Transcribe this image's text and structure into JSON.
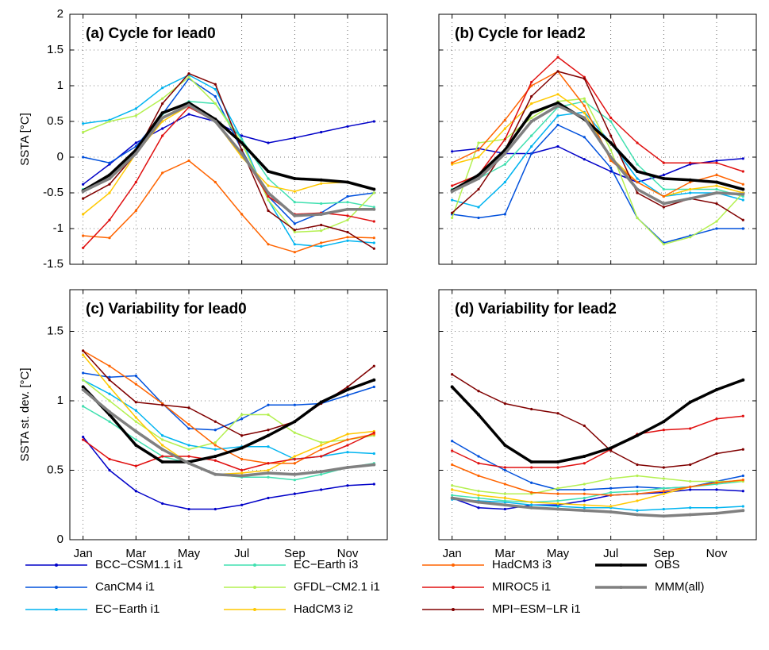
{
  "chart_data": [
    {
      "type": "line",
      "title": "(a) Cycle for lead0",
      "ylabel": "SSTA [°C]",
      "ylim": [
        -1.5,
        2
      ],
      "yticks": [
        -1.5,
        -1,
        -0.5,
        0,
        0.5,
        1,
        1.5,
        2
      ],
      "grid": true,
      "series": [
        {
          "name": "BCC−CSM1.1 i1",
          "color": "#0000c8",
          "values": [
            -0.38,
            -0.1,
            0.2,
            0.4,
            0.6,
            0.5,
            0.3,
            0.2,
            0.27,
            0.35,
            0.43,
            0.5
          ]
        },
        {
          "name": "CanCM4 i1",
          "color": "#0050dc",
          "values": [
            0.0,
            -0.08,
            0.15,
            0.6,
            1.1,
            0.85,
            0.1,
            -0.55,
            -0.93,
            -0.78,
            -0.55,
            -0.5
          ]
        },
        {
          "name": "EC−Earth i1",
          "color": "#00b4f0",
          "values": [
            0.47,
            0.52,
            0.68,
            0.97,
            1.15,
            0.95,
            0.25,
            -0.6,
            -1.22,
            -1.25,
            -1.17,
            -1.2
          ]
        },
        {
          "name": "EC−Earth i3",
          "color": "#40e0b0",
          "values": [
            -0.45,
            -0.3,
            0.1,
            0.6,
            0.78,
            0.75,
            0.25,
            -0.3,
            -0.63,
            -0.65,
            -0.63,
            -0.7
          ]
        },
        {
          "name": "GFDL−CM2.1 i1",
          "color": "#b4f050",
          "values": [
            0.35,
            0.5,
            0.58,
            0.82,
            1.12,
            0.75,
            0.2,
            -0.6,
            -1.05,
            -1.03,
            -0.88,
            -0.5
          ]
        },
        {
          "name": "HadCM3 i2",
          "color": "#ffc800",
          "values": [
            -0.8,
            -0.5,
            0.05,
            0.5,
            0.72,
            0.5,
            0.0,
            -0.4,
            -0.48,
            -0.37,
            -0.35,
            -0.45
          ]
        },
        {
          "name": "HadCM3 i3",
          "color": "#ff6400",
          "values": [
            -1.1,
            -1.13,
            -0.75,
            -0.22,
            -0.05,
            -0.35,
            -0.8,
            -1.22,
            -1.33,
            -1.2,
            -1.12,
            -1.13
          ]
        },
        {
          "name": "MIROC5 i1",
          "color": "#e01010",
          "values": [
            -1.27,
            -0.88,
            -0.35,
            0.3,
            0.7,
            0.5,
            0.05,
            -0.55,
            -0.8,
            -0.78,
            -0.82,
            -0.9
          ]
        },
        {
          "name": "MPI−ESM−LR i1",
          "color": "#800000",
          "values": [
            -0.58,
            -0.38,
            0.05,
            0.75,
            1.17,
            1.02,
            0.1,
            -0.75,
            -1.02,
            -0.95,
            -1.05,
            -1.28
          ]
        },
        {
          "name": "OBS",
          "color": "#000000",
          "linewidth": 3.5,
          "values": [
            -0.47,
            -0.25,
            0.1,
            0.62,
            0.76,
            0.53,
            0.2,
            -0.2,
            -0.3,
            -0.32,
            -0.35,
            -0.45
          ]
        },
        {
          "name": "MMM(all)",
          "color": "#808080",
          "linewidth": 3.5,
          "values": [
            -0.48,
            -0.3,
            0.05,
            0.55,
            0.73,
            0.5,
            0.05,
            -0.5,
            -0.82,
            -0.8,
            -0.73,
            -0.73
          ]
        }
      ]
    },
    {
      "type": "line",
      "title": "(b) Cycle for lead2",
      "ylim": [
        -1.5,
        2
      ],
      "yticks": [
        -1.5,
        -1,
        -0.5,
        0,
        0.5,
        1,
        1.5,
        2
      ],
      "ytick_labels": false,
      "grid": true,
      "series": [
        {
          "name": "BCC−CSM1.1 i1",
          "color": "#0000c8",
          "values": [
            0.08,
            0.12,
            0.05,
            0.05,
            0.15,
            -0.03,
            -0.2,
            -0.35,
            -0.25,
            -0.1,
            -0.05,
            -0.02
          ]
        },
        {
          "name": "CanCM4 i1",
          "color": "#0050dc",
          "values": [
            -0.8,
            -0.85,
            -0.8,
            0.05,
            0.45,
            0.28,
            -0.15,
            -0.85,
            -1.2,
            -1.1,
            -1.0,
            -1.0
          ]
        },
        {
          "name": "EC−Earth i1",
          "color": "#00b4f0",
          "values": [
            -0.6,
            -0.7,
            -0.35,
            0.15,
            0.58,
            0.63,
            0.2,
            -0.3,
            -0.55,
            -0.5,
            -0.5,
            -0.6
          ]
        },
        {
          "name": "EC−Earth i3",
          "color": "#40e0b0",
          "values": [
            -0.45,
            -0.3,
            -0.1,
            0.3,
            0.7,
            0.78,
            0.5,
            -0.1,
            -0.45,
            -0.45,
            -0.45,
            -0.55
          ]
        },
        {
          "name": "GFDL−CM2.1 i1",
          "color": "#b4f050",
          "values": [
            -0.85,
            0.2,
            0.25,
            0.55,
            0.78,
            0.82,
            0.1,
            -0.85,
            -1.22,
            -1.12,
            -0.9,
            -0.5
          ]
        },
        {
          "name": "HadCM3 i2",
          "color": "#ffc800",
          "values": [
            -0.1,
            0.0,
            0.4,
            0.75,
            0.88,
            0.62,
            0.0,
            -0.35,
            -0.55,
            -0.45,
            -0.4,
            -0.5
          ]
        },
        {
          "name": "HadCM3 i3",
          "color": "#ff6400",
          "values": [
            -0.08,
            0.1,
            0.52,
            1.0,
            1.2,
            0.72,
            -0.05,
            -0.35,
            -0.55,
            -0.35,
            -0.25,
            -0.38
          ]
        },
        {
          "name": "MIROC5 i1",
          "color": "#e01010",
          "values": [
            -0.4,
            -0.25,
            0.25,
            1.05,
            1.4,
            1.12,
            0.55,
            0.2,
            -0.08,
            -0.08,
            -0.08,
            -0.2
          ]
        },
        {
          "name": "MPI−ESM−LR i1",
          "color": "#800000",
          "values": [
            -0.78,
            -0.45,
            0.1,
            0.85,
            1.2,
            1.1,
            0.3,
            -0.5,
            -0.7,
            -0.58,
            -0.65,
            -0.88
          ]
        },
        {
          "name": "OBS",
          "color": "#000000",
          "linewidth": 3.5,
          "values": [
            -0.47,
            -0.25,
            0.1,
            0.62,
            0.76,
            0.53,
            0.2,
            -0.2,
            -0.3,
            -0.32,
            -0.35,
            -0.45
          ]
        },
        {
          "name": "MMM(all)",
          "color": "#808080",
          "linewidth": 3.5,
          "values": [
            -0.48,
            -0.3,
            0.05,
            0.5,
            0.72,
            0.55,
            0.0,
            -0.45,
            -0.65,
            -0.58,
            -0.5,
            -0.52
          ]
        }
      ]
    },
    {
      "type": "line",
      "title": "(c) Variability for lead0",
      "ylabel": "SSTA st. dev. [°C]",
      "ylim": [
        0,
        1.8
      ],
      "yticks": [
        0,
        0.5,
        1,
        1.5
      ],
      "grid": true,
      "categories": [
        "Jan",
        null,
        "Mar",
        null,
        "May",
        null,
        "Jul",
        null,
        "Sep",
        null,
        "Nov",
        null
      ],
      "series": [
        {
          "name": "BCC−CSM1.1 i1",
          "color": "#0000c8",
          "values": [
            0.74,
            0.5,
            0.35,
            0.26,
            0.22,
            0.22,
            0.25,
            0.3,
            0.33,
            0.36,
            0.39,
            0.4
          ]
        },
        {
          "name": "CanCM4 i1",
          "color": "#0050dc",
          "values": [
            1.2,
            1.17,
            1.18,
            0.98,
            0.8,
            0.79,
            0.87,
            0.97,
            0.97,
            0.98,
            1.04,
            1.1
          ]
        },
        {
          "name": "EC−Earth i1",
          "color": "#00b4f0",
          "values": [
            1.15,
            1.05,
            0.93,
            0.75,
            0.68,
            0.65,
            0.67,
            0.67,
            0.58,
            0.6,
            0.63,
            0.62
          ]
        },
        {
          "name": "EC−Earth i3",
          "color": "#40e0b0",
          "values": [
            0.96,
            0.85,
            0.72,
            0.6,
            0.55,
            0.47,
            0.45,
            0.45,
            0.43,
            0.47,
            0.52,
            0.55
          ]
        },
        {
          "name": "GFDL−CM2.1 i1",
          "color": "#b4f050",
          "values": [
            1.15,
            1.0,
            0.85,
            0.72,
            0.65,
            0.7,
            0.9,
            0.9,
            0.77,
            0.7,
            0.72,
            0.75
          ]
        },
        {
          "name": "HadCM3 i2",
          "color": "#ffc800",
          "values": [
            1.33,
            1.1,
            0.88,
            0.68,
            0.55,
            0.47,
            0.48,
            0.5,
            0.6,
            0.68,
            0.76,
            0.78
          ]
        },
        {
          "name": "HadCM3 i3",
          "color": "#ff6400",
          "values": [
            1.36,
            1.25,
            1.12,
            0.98,
            0.83,
            0.68,
            0.58,
            0.55,
            0.55,
            0.65,
            0.72,
            0.76
          ]
        },
        {
          "name": "MIROC5 i1",
          "color": "#e01010",
          "values": [
            0.72,
            0.58,
            0.53,
            0.6,
            0.6,
            0.57,
            0.5,
            0.55,
            0.58,
            0.6,
            0.68,
            0.77
          ]
        },
        {
          "name": "MPI−ESM−LR i1",
          "color": "#800000",
          "values": [
            1.36,
            1.15,
            0.99,
            0.97,
            0.95,
            0.85,
            0.75,
            0.79,
            0.85,
            0.98,
            1.1,
            1.25
          ]
        },
        {
          "name": "OBS",
          "color": "#000000",
          "linewidth": 3.5,
          "values": [
            1.1,
            0.9,
            0.68,
            0.56,
            0.56,
            0.6,
            0.66,
            0.75,
            0.85,
            0.99,
            1.08,
            1.15
          ]
        },
        {
          "name": "MMM(all)",
          "color": "#808080",
          "linewidth": 3.5,
          "values": [
            1.08,
            0.92,
            0.78,
            0.65,
            0.55,
            0.47,
            0.46,
            0.48,
            0.47,
            0.49,
            0.52,
            0.54
          ]
        }
      ]
    },
    {
      "type": "line",
      "title": "(d) Variability for lead2",
      "ylim": [
        0,
        1.8
      ],
      "yticks": [
        0,
        0.5,
        1,
        1.5
      ],
      "ytick_labels": false,
      "grid": true,
      "categories": [
        "Jan",
        null,
        "Mar",
        null,
        "May",
        null,
        "Jul",
        null,
        "Sep",
        null,
        "Nov",
        null
      ],
      "series": [
        {
          "name": "BCC−CSM1.1 i1",
          "color": "#0000c8",
          "values": [
            0.3,
            0.23,
            0.22,
            0.25,
            0.25,
            0.28,
            0.32,
            0.33,
            0.34,
            0.36,
            0.36,
            0.35
          ]
        },
        {
          "name": "CanCM4 i1",
          "color": "#0050dc",
          "values": [
            0.71,
            0.6,
            0.5,
            0.41,
            0.36,
            0.36,
            0.37,
            0.38,
            0.37,
            0.38,
            0.42,
            0.46
          ]
        },
        {
          "name": "EC−Earth i1",
          "color": "#00b4f0",
          "values": [
            0.29,
            0.28,
            0.27,
            0.25,
            0.24,
            0.23,
            0.23,
            0.21,
            0.22,
            0.23,
            0.23,
            0.24
          ]
        },
        {
          "name": "EC−Earth i3",
          "color": "#40e0b0",
          "values": [
            0.32,
            0.3,
            0.28,
            0.27,
            0.28,
            0.3,
            0.34,
            0.35,
            0.37,
            0.38,
            0.4,
            0.42
          ]
        },
        {
          "name": "GFDL−CM2.1 i1",
          "color": "#b4f050",
          "values": [
            0.39,
            0.35,
            0.33,
            0.33,
            0.37,
            0.4,
            0.44,
            0.46,
            0.44,
            0.42,
            0.42,
            0.42
          ]
        },
        {
          "name": "HadCM3 i2",
          "color": "#ffc800",
          "values": [
            0.36,
            0.32,
            0.3,
            0.27,
            0.26,
            0.25,
            0.24,
            0.28,
            0.33,
            0.38,
            0.41,
            0.43
          ]
        },
        {
          "name": "HadCM3 i3",
          "color": "#ff6400",
          "values": [
            0.54,
            0.46,
            0.4,
            0.34,
            0.33,
            0.33,
            0.32,
            0.33,
            0.35,
            0.38,
            0.41,
            0.43
          ]
        },
        {
          "name": "MIROC5 i1",
          "color": "#e01010",
          "values": [
            0.64,
            0.55,
            0.52,
            0.52,
            0.52,
            0.55,
            0.65,
            0.76,
            0.79,
            0.8,
            0.87,
            0.89
          ]
        },
        {
          "name": "MPI−ESM−LR i1",
          "color": "#800000",
          "values": [
            1.19,
            1.07,
            0.98,
            0.94,
            0.91,
            0.82,
            0.64,
            0.54,
            0.52,
            0.54,
            0.62,
            0.65
          ]
        },
        {
          "name": "OBS",
          "color": "#000000",
          "linewidth": 3.5,
          "values": [
            1.1,
            0.9,
            0.68,
            0.56,
            0.56,
            0.6,
            0.66,
            0.75,
            0.85,
            0.99,
            1.08,
            1.15
          ]
        },
        {
          "name": "MMM(all)",
          "color": "#808080",
          "linewidth": 3.5,
          "values": [
            0.3,
            0.27,
            0.25,
            0.23,
            0.22,
            0.21,
            0.2,
            0.18,
            0.17,
            0.18,
            0.19,
            0.21
          ]
        }
      ]
    }
  ]
}
